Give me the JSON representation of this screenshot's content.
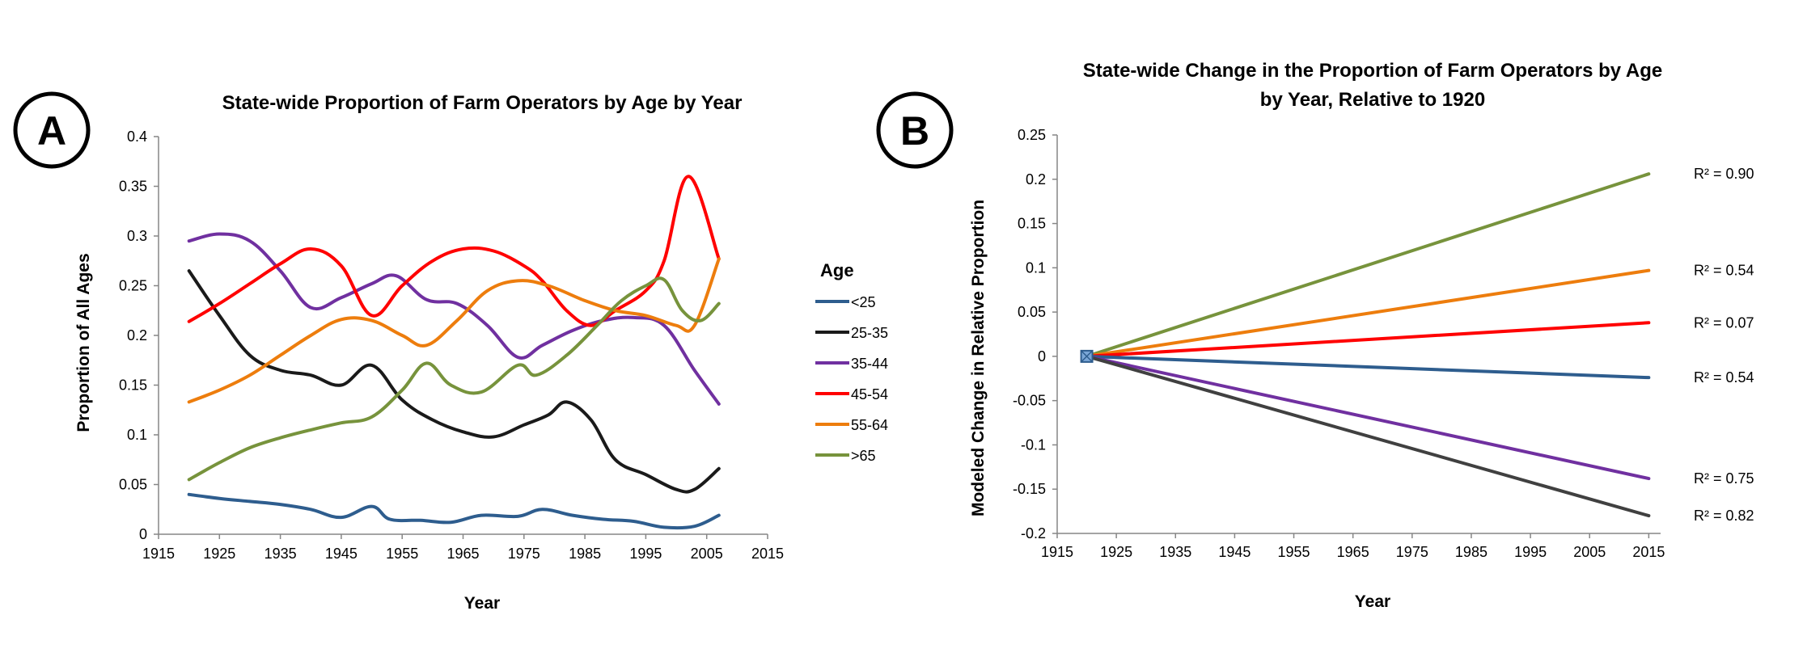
{
  "chart_data": [
    {
      "panel": "A",
      "type": "line",
      "title": "State-wide Proportion of Farm Operators by Age by Year",
      "xlabel": "Year",
      "ylabel": "Proportion of All Ages",
      "xlim": [
        1915,
        2015
      ],
      "ylim": [
        0,
        0.4
      ],
      "xticks": [
        "1915",
        "1925",
        "1935",
        "1945",
        "1955",
        "1965",
        "1975",
        "1985",
        "1995",
        "2005",
        "2015"
      ],
      "yticks": [
        "0",
        "0.05",
        "0.1",
        "0.15",
        "0.2",
        "0.25",
        "0.3",
        "0.35",
        "0.4"
      ],
      "legend_title": "Age",
      "legend_position": "right",
      "grid": false,
      "series": [
        {
          "name": "<25",
          "color": "#2e5d8e",
          "points": [
            [
              1920,
              0.04
            ],
            [
              1925,
              0.036
            ],
            [
              1930,
              0.033
            ],
            [
              1935,
              0.03
            ],
            [
              1940,
              0.025
            ],
            [
              1945,
              0.017
            ],
            [
              1950,
              0.028
            ],
            [
              1953,
              0.015
            ],
            [
              1958,
              0.014
            ],
            [
              1963,
              0.012
            ],
            [
              1968,
              0.019
            ],
            [
              1974,
              0.018
            ],
            [
              1978,
              0.025
            ],
            [
              1983,
              0.019
            ],
            [
              1988,
              0.015
            ],
            [
              1993,
              0.013
            ],
            [
              1998,
              0.007
            ],
            [
              2003,
              0.008
            ],
            [
              2007,
              0.019
            ]
          ]
        },
        {
          "name": "25-35",
          "color": "#1a1a1a",
          "points": [
            [
              1920,
              0.265
            ],
            [
              1925,
              0.22
            ],
            [
              1930,
              0.18
            ],
            [
              1935,
              0.165
            ],
            [
              1940,
              0.16
            ],
            [
              1945,
              0.15
            ],
            [
              1950,
              0.17
            ],
            [
              1955,
              0.135
            ],
            [
              1960,
              0.115
            ],
            [
              1965,
              0.103
            ],
            [
              1970,
              0.098
            ],
            [
              1975,
              0.11
            ],
            [
              1979,
              0.12
            ],
            [
              1982,
              0.133
            ],
            [
              1986,
              0.115
            ],
            [
              1990,
              0.075
            ],
            [
              1995,
              0.06
            ],
            [
              2000,
              0.045
            ],
            [
              2003,
              0.045
            ],
            [
              2007,
              0.066
            ]
          ]
        },
        {
          "name": "35-44",
          "color": "#7030a0",
          "points": [
            [
              1920,
              0.295
            ],
            [
              1925,
              0.302
            ],
            [
              1930,
              0.295
            ],
            [
              1935,
              0.265
            ],
            [
              1940,
              0.228
            ],
            [
              1945,
              0.238
            ],
            [
              1950,
              0.252
            ],
            [
              1954,
              0.26
            ],
            [
              1959,
              0.236
            ],
            [
              1964,
              0.232
            ],
            [
              1969,
              0.21
            ],
            [
              1974,
              0.178
            ],
            [
              1978,
              0.19
            ],
            [
              1983,
              0.205
            ],
            [
              1988,
              0.215
            ],
            [
              1993,
              0.218
            ],
            [
              1998,
              0.21
            ],
            [
              2003,
              0.165
            ],
            [
              2007,
              0.131
            ]
          ]
        },
        {
          "name": "45-54",
          "color": "#ff0000",
          "points": [
            [
              1920,
              0.214
            ],
            [
              1925,
              0.232
            ],
            [
              1930,
              0.252
            ],
            [
              1935,
              0.272
            ],
            [
              1940,
              0.287
            ],
            [
              1945,
              0.27
            ],
            [
              1950,
              0.22
            ],
            [
              1955,
              0.25
            ],
            [
              1960,
              0.275
            ],
            [
              1965,
              0.287
            ],
            [
              1970,
              0.285
            ],
            [
              1975,
              0.27
            ],
            [
              1978,
              0.255
            ],
            [
              1982,
              0.225
            ],
            [
              1986,
              0.21
            ],
            [
              1990,
              0.225
            ],
            [
              1995,
              0.245
            ],
            [
              1998,
              0.275
            ],
            [
              2002,
              0.36
            ],
            [
              2007,
              0.277
            ]
          ]
        },
        {
          "name": "55-64",
          "color": "#ed7d0d",
          "points": [
            [
              1920,
              0.133
            ],
            [
              1925,
              0.145
            ],
            [
              1930,
              0.16
            ],
            [
              1935,
              0.18
            ],
            [
              1940,
              0.2
            ],
            [
              1945,
              0.216
            ],
            [
              1950,
              0.215
            ],
            [
              1955,
              0.2
            ],
            [
              1959,
              0.19
            ],
            [
              1964,
              0.215
            ],
            [
              1969,
              0.245
            ],
            [
              1974,
              0.255
            ],
            [
              1979,
              0.25
            ],
            [
              1985,
              0.235
            ],
            [
              1990,
              0.225
            ],
            [
              1995,
              0.22
            ],
            [
              2000,
              0.21
            ],
            [
              2003,
              0.21
            ],
            [
              2007,
              0.277
            ]
          ]
        },
        {
          "name": ">65",
          "color": "#77933c",
          "points": [
            [
              1920,
              0.055
            ],
            [
              1925,
              0.072
            ],
            [
              1930,
              0.087
            ],
            [
              1935,
              0.097
            ],
            [
              1940,
              0.105
            ],
            [
              1945,
              0.112
            ],
            [
              1950,
              0.118
            ],
            [
              1955,
              0.145
            ],
            [
              1959,
              0.172
            ],
            [
              1963,
              0.15
            ],
            [
              1968,
              0.143
            ],
            [
              1974,
              0.17
            ],
            [
              1977,
              0.16
            ],
            [
              1982,
              0.18
            ],
            [
              1987,
              0.21
            ],
            [
              1991,
              0.235
            ],
            [
              1995,
              0.25
            ],
            [
              1998,
              0.256
            ],
            [
              2001,
              0.225
            ],
            [
              2004,
              0.215
            ],
            [
              2007,
              0.232
            ]
          ]
        }
      ]
    },
    {
      "panel": "B",
      "type": "line",
      "title": "State-wide Change in the Proportion of Farm Operators by Age by Year, Relative to 1920",
      "title_lines": [
        "State-wide Change in the Proportion of Farm Operators by Age",
        "by Year, Relative to 1920"
      ],
      "xlabel": "Year",
      "ylabel": "Modeled Change in Relative Proportion",
      "xlim": [
        1915,
        2017
      ],
      "ylim": [
        -0.2,
        0.25
      ],
      "xticks": [
        "1915",
        "1925",
        "1935",
        "1945",
        "1955",
        "1965",
        "1975",
        "1985",
        "1995",
        "2005",
        "2015"
      ],
      "yticks": [
        "-0.2",
        "-0.15",
        "-0.1",
        "-0.05",
        "0",
        "0.05",
        "0.1",
        "0.15",
        "0.2",
        "0.25"
      ],
      "grid": false,
      "series": [
        {
          "name": ">65",
          "color": "#77933c",
          "x": [
            1920,
            2015
          ],
          "y": [
            0,
            0.206
          ],
          "r2": "R² = 0.90"
        },
        {
          "name": "55-64",
          "color": "#ed7d0d",
          "x": [
            1920,
            2015
          ],
          "y": [
            0,
            0.097
          ],
          "r2": "R² = 0.54"
        },
        {
          "name": "45-54",
          "color": "#ff0000",
          "x": [
            1920,
            2015
          ],
          "y": [
            0,
            0.038
          ],
          "r2": "R² = 0.07"
        },
        {
          "name": "<25",
          "color": "#2e5d8e",
          "x": [
            1920,
            2015
          ],
          "y": [
            0,
            -0.024
          ],
          "r2": "R² = 0.54"
        },
        {
          "name": "35-44",
          "color": "#7030a0",
          "x": [
            1920,
            2015
          ],
          "y": [
            0,
            -0.138
          ],
          "r2": "R² = 0.75"
        },
        {
          "name": "25-35",
          "color": "#404040",
          "x": [
            1920,
            2015
          ],
          "y": [
            0,
            -0.18
          ],
          "r2": "R² = 0.82"
        }
      ]
    }
  ]
}
